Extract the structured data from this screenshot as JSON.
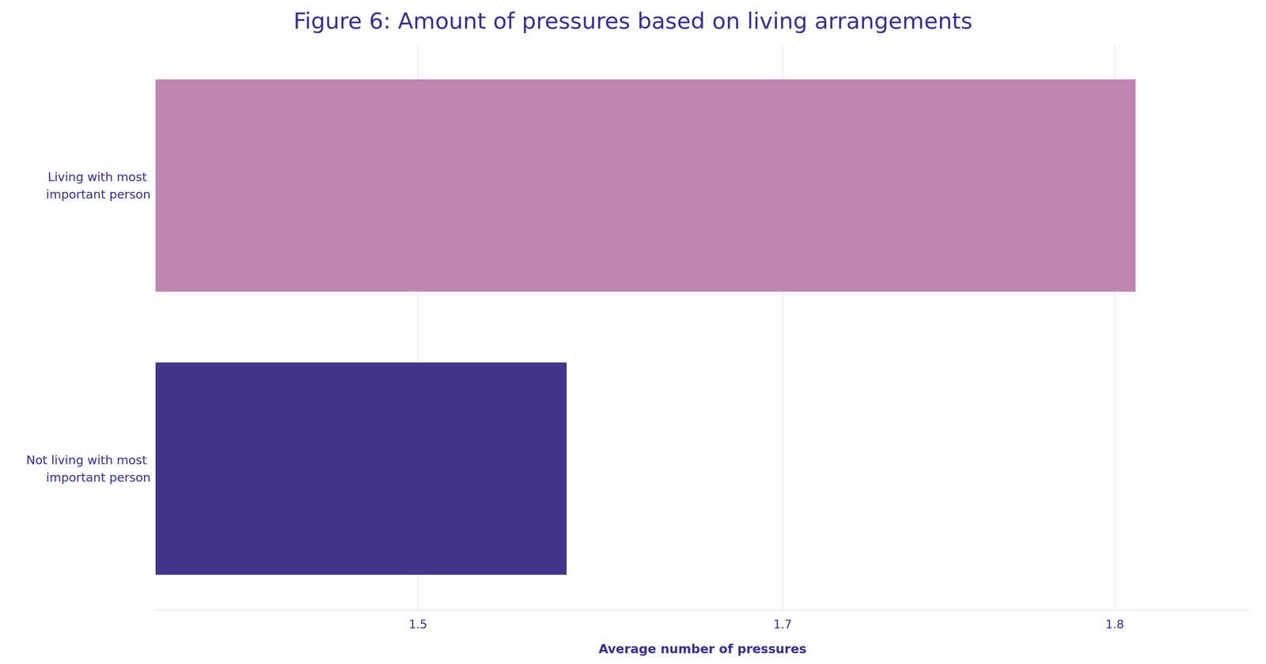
{
  "chart_data": {
    "type": "bar",
    "orientation": "horizontal",
    "title": "Figure 6: Amount of pressures based on living arrangements",
    "x_label": "Average number of pressures",
    "categories": [
      "Living with most important person",
      "Not living with most important person"
    ],
    "values": [
      1.809,
      1.564
    ],
    "colors": [
      "#c085b0",
      "#43348c"
    ],
    "xlim": [
      1.387,
      1.858
    ],
    "xticks": [
      1.5,
      {
        "value": 1.657,
        "label": "1.7"
      },
      1.8
    ],
    "grid": true
  }
}
